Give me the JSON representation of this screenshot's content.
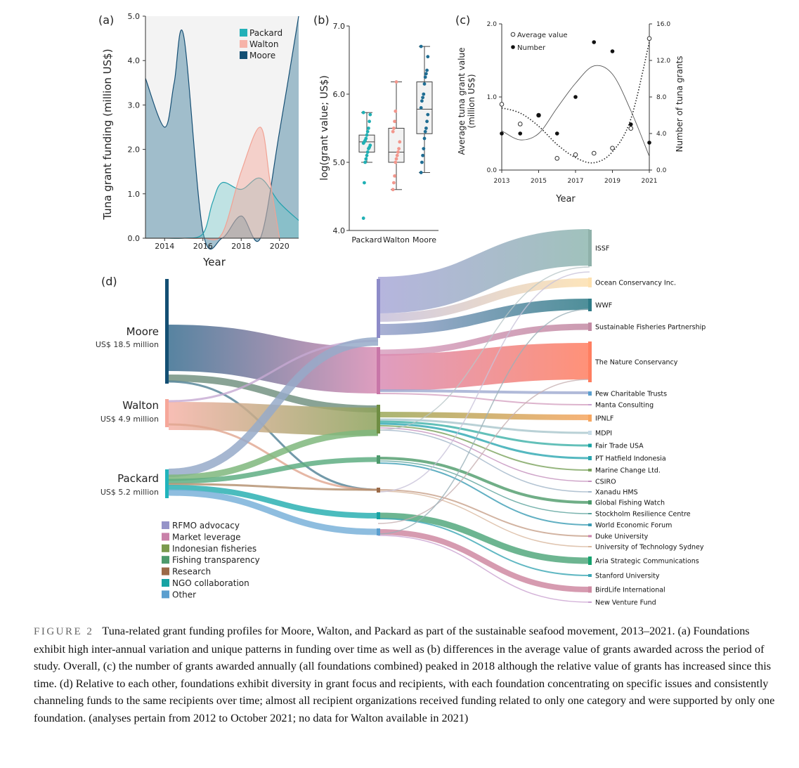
{
  "figure": {
    "label": "FIGURE 2",
    "caption": "Tuna-related grant funding profiles for Moore, Walton, and Packard as part of the sustainable seafood movement, 2013–2021. (a) Foundations exhibit high inter-annual variation and unique patterns in funding over time as well as (b) differences in the average value of grants awarded across the period of study. Overall, (c) the number of grants awarded annually (all foundations combined) peaked in 2018 although the relative value of grants has increased since this time. (d) Relative to each other, foundations exhibit diversity in grant focus and recipients, with each foundation concentrating on specific issues and consistently channeling funds to the same recipients over time; almost all recipient organizations received funding related to only one category and were supported by only one foundation. (analyses pertain from 2012 to October 2021; no data for Walton available in 2021)"
  },
  "colors": {
    "packard": "#22b0b8",
    "walton": "#f6b3a8",
    "moore": "#134f73",
    "panel_bg": "#f3f3f3"
  },
  "chart_data": [
    {
      "panel": "(a)",
      "type": "area",
      "xlabel": "Year",
      "ylabel": "Tuna grant funding (million US$)",
      "xlim": [
        2013,
        2021
      ],
      "ylim": [
        0,
        5
      ],
      "xticks": [
        "2014",
        "2016",
        "2018",
        "2020"
      ],
      "yticks": [
        "0.0",
        "1.0",
        "2.0",
        "3.0",
        "4.0",
        "5.0"
      ],
      "legend": [
        "Packard",
        "Walton",
        "Moore"
      ],
      "series": [
        {
          "name": "Packard",
          "x": [
            2013,
            2014,
            2015,
            2016,
            2016.5,
            2017,
            2018,
            2019,
            2020,
            2021
          ],
          "values": [
            0,
            0,
            0,
            0.1,
            0.8,
            1.25,
            1.1,
            1.35,
            0.8,
            0.4
          ]
        },
        {
          "name": "Walton",
          "x": [
            2013,
            2014,
            2015,
            2016,
            2017,
            2018,
            2019,
            2019.5,
            2020
          ],
          "values": [
            0,
            0,
            0,
            0,
            0.1,
            1.5,
            2.5,
            1.3,
            0
          ]
        },
        {
          "name": "Moore",
          "x": [
            2013,
            2014,
            2014.5,
            2015,
            2016,
            2017,
            2018,
            2019,
            2020,
            2021
          ],
          "values": [
            3.6,
            2.5,
            3.5,
            4.55,
            0.15,
            0,
            0.5,
            0,
            2.4,
            5.0
          ]
        }
      ]
    },
    {
      "panel": "(b)",
      "type": "box",
      "ylabel": "log(grant value; US$)",
      "ylim": [
        4.0,
        7.0
      ],
      "yticks": [
        "4.0",
        "5.0",
        "6.0",
        "7.0"
      ],
      "categories": [
        "Packard",
        "Walton",
        "Moore"
      ],
      "boxes": [
        {
          "name": "Packard",
          "whisker_low": 5.0,
          "q1": 5.15,
          "median": 5.3,
          "q3": 5.4,
          "whisker_high": 5.73,
          "points": [
            4.18,
            4.7,
            5.0,
            5.05,
            5.1,
            5.15,
            5.2,
            5.22,
            5.25,
            5.28,
            5.3,
            5.32,
            5.35,
            5.4,
            5.45,
            5.5,
            5.6,
            5.7,
            5.73
          ]
        },
        {
          "name": "Walton",
          "whisker_low": 4.6,
          "q1": 5.0,
          "median": 5.15,
          "q3": 5.5,
          "whisker_high": 6.18,
          "points": [
            4.6,
            4.7,
            4.8,
            5.0,
            5.05,
            5.1,
            5.15,
            5.2,
            5.3,
            5.45,
            5.5,
            5.6,
            5.75,
            6.18
          ]
        },
        {
          "name": "Moore",
          "whisker_low": 4.85,
          "q1": 5.42,
          "median": 5.78,
          "q3": 6.18,
          "whisker_high": 6.7,
          "points": [
            4.85,
            5.0,
            5.1,
            5.2,
            5.35,
            5.45,
            5.5,
            5.6,
            5.7,
            5.8,
            5.9,
            5.95,
            6.0,
            6.15,
            6.25,
            6.3,
            6.35,
            6.55,
            6.7
          ]
        }
      ]
    },
    {
      "panel": "(c)",
      "type": "scatter",
      "xlabel": "Year",
      "ylabel_left": "Average tuna grant value (million US$)",
      "ylabel_right": "Number of tuna grants",
      "xlim": [
        2013,
        2021
      ],
      "ylim_left": [
        0,
        2.0
      ],
      "ylim_right": [
        0,
        16.0
      ],
      "xticks": [
        "2013",
        "2015",
        "2017",
        "2019",
        "2021"
      ],
      "yticks_left": [
        "0.0",
        "1.0",
        "2.0"
      ],
      "yticks_right": [
        "0.0",
        "4.0",
        "8.0",
        "12.0",
        "16.0"
      ],
      "legend": [
        "Average value",
        "Number"
      ],
      "series": [
        {
          "name": "Average value",
          "x": [
            2013,
            2014,
            2015,
            2016,
            2017,
            2018,
            2019,
            2020,
            2021
          ],
          "values": [
            0.9,
            0.63,
            0.75,
            0.16,
            0.21,
            0.23,
            0.3,
            0.57,
            1.8
          ]
        },
        {
          "name": "Number",
          "x": [
            2013,
            2014,
            2015,
            2016,
            2017,
            2018,
            2019,
            2020,
            2021
          ],
          "values": [
            4,
            4,
            6,
            4,
            8,
            14,
            13,
            5,
            3
          ]
        }
      ]
    },
    {
      "panel": "(d)",
      "type": "sankey",
      "sources": [
        {
          "name": "Moore",
          "amount": "US$ 18.5 million"
        },
        {
          "name": "Walton",
          "amount": "US$ 4.9 million"
        },
        {
          "name": "Packard",
          "amount": "US$ 5.2 million"
        }
      ],
      "categories": [
        {
          "name": "RFMO advocacy",
          "color": "#9593c8"
        },
        {
          "name": "Market leverage",
          "color": "#c981a9"
        },
        {
          "name": "Indonesian fisheries",
          "color": "#7a9a4e"
        },
        {
          "name": "Fishing transparency",
          "color": "#4d9a6c"
        },
        {
          "name": "Research",
          "color": "#9b6a48"
        },
        {
          "name": "NGO collaboration",
          "color": "#17a3a3"
        },
        {
          "name": "Other",
          "color": "#5b9fcf"
        }
      ],
      "recipients": [
        "ISSF",
        "Ocean Conservancy Inc.",
        "WWF",
        "Sustainable Fisheries Partnership",
        "The Nature Conservancy",
        "Pew Charitable Trusts",
        "Manta Consulting",
        "IPNLF",
        "MDPI",
        "Fair Trade USA",
        "PT Hatfield Indonesia",
        "Marine Change Ltd.",
        "CSIRO",
        "Xanadu HMS",
        "Global Fishing Watch",
        "Stockholm Resilience Centre",
        "World Economic Forum",
        "Duke University",
        "University of Technology Sydney",
        "Aria Strategic Communications",
        "Stanford University",
        "BirdLife International",
        "New Venture Fund"
      ]
    }
  ]
}
